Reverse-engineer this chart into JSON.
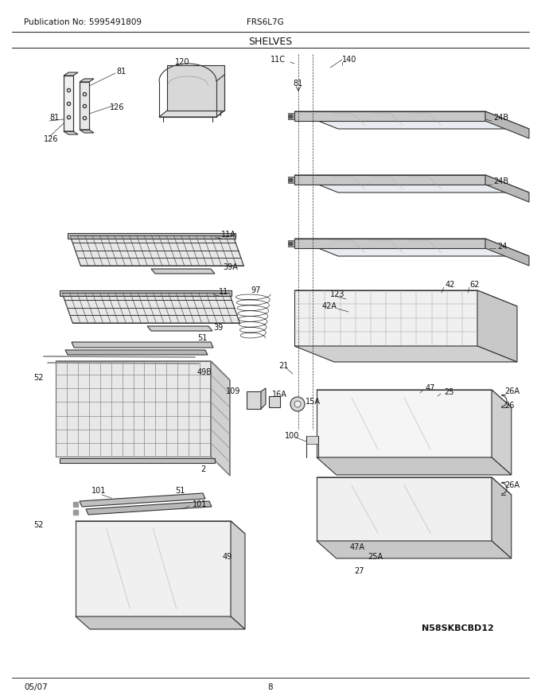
{
  "title": "SHELVES",
  "pub_no": "Publication No: 5995491809",
  "model": "FRS6L7G",
  "date": "05/07",
  "page": "8",
  "watermark": "N58SKBCBD12",
  "bg_color": "#ffffff",
  "line_color": "#333333",
  "fig_width": 6.8,
  "fig_height": 8.8,
  "dpi": 100
}
